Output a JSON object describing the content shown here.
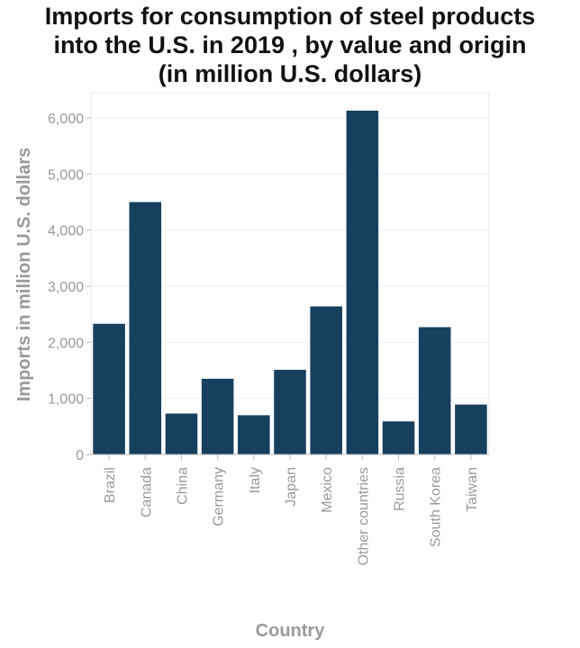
{
  "chart_data": {
    "type": "bar",
    "title_lines": [
      "Imports for consumption of steel products",
      "into the U.S. in 2019 , by value and origin",
      "(in million U.S. dollars)"
    ],
    "xlabel": "Country",
    "ylabel": "Imports in million U.S. dollars",
    "categories": [
      "Brazil",
      "Canada",
      "China",
      "Germany",
      "Italy",
      "Japan",
      "Mexico",
      "Other countries",
      "Russia",
      "South Korea",
      "Taiwan"
    ],
    "values": [
      2330,
      4500,
      730,
      1350,
      700,
      1510,
      2640,
      6130,
      590,
      2270,
      890
    ],
    "ylim": [
      0,
      6450
    ],
    "yticks": [
      0,
      1000,
      2000,
      3000,
      4000,
      5000,
      6000
    ],
    "ytick_labels": [
      "0",
      "1,000",
      "2,000",
      "3,000",
      "4,000",
      "5,000",
      "6,000"
    ],
    "grid": true,
    "bar_color": "#17405f"
  }
}
